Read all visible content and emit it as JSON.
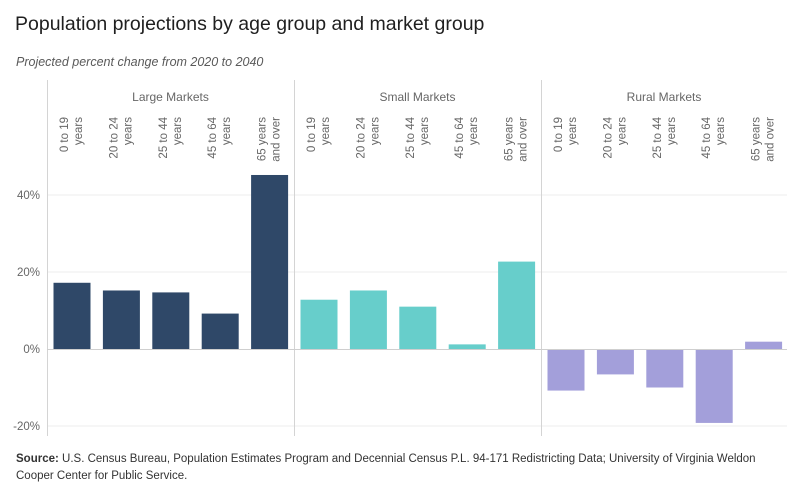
{
  "title": "Population projections by age group and market group",
  "subtitle": "Projected percent change from 2020 to 2040",
  "source": {
    "label": "Source:",
    "text": " U.S. Census Bureau, Population Estimates Program and Decennial Census P.L. 94-171 Redistricting Data; University of Virginia Weldon Cooper Center for Public Service."
  },
  "chart_data": {
    "type": "bar",
    "y_ticks": [
      "40%",
      "20%",
      "0%",
      "-20%"
    ],
    "ylim": [
      -20,
      45
    ],
    "grid": true,
    "panels": [
      {
        "name": "Large Markets",
        "color": "#2f4868",
        "categories": [
          [
            "0 to 19",
            "years"
          ],
          [
            "20 to 24",
            "years"
          ],
          [
            "25 to 44",
            "years"
          ],
          [
            "45 to 64",
            "years"
          ],
          [
            "65 years",
            "and over"
          ]
        ],
        "values": [
          17.2,
          15.2,
          14.7,
          9.2,
          45.2
        ]
      },
      {
        "name": "Small Markets",
        "color": "#67cecb",
        "categories": [
          [
            "0 to 19",
            "years"
          ],
          [
            "20 to 24",
            "years"
          ],
          [
            "25 to 44",
            "years"
          ],
          [
            "45 to 64",
            "years"
          ],
          [
            "65 years",
            "and over"
          ]
        ],
        "values": [
          12.8,
          15.2,
          11.0,
          1.2,
          22.7
        ]
      },
      {
        "name": "Rural Markets",
        "color": "#a39fda",
        "categories": [
          [
            "0 to 19",
            "years"
          ],
          [
            "20 to 24",
            "years"
          ],
          [
            "25 to 44",
            "years"
          ],
          [
            "45 to 64",
            "years"
          ],
          [
            "65 years",
            "and over"
          ]
        ],
        "values": [
          -10.8,
          -6.6,
          -10.0,
          -19.2,
          1.9
        ]
      }
    ]
  }
}
